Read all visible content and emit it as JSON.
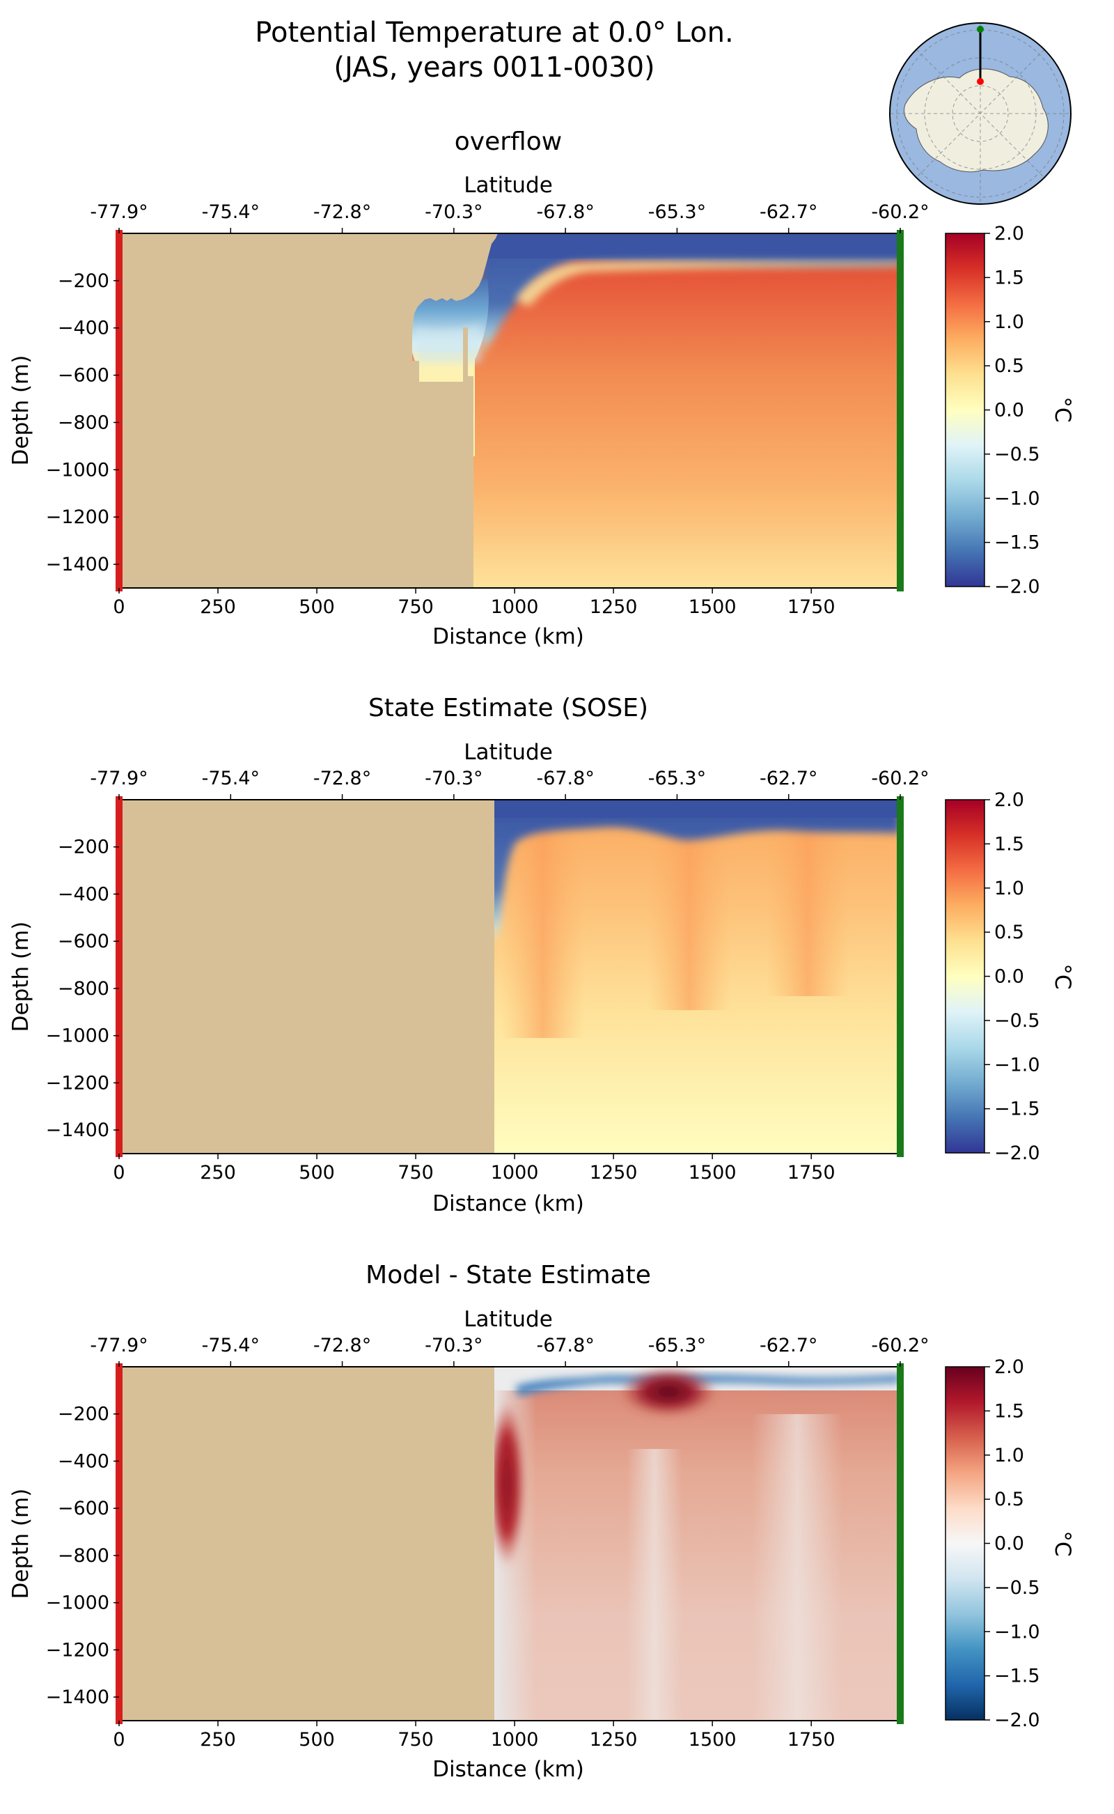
{
  "figure": {
    "title_line1": "Potential Temperature at 0.0° Lon.",
    "title_line2": "(JAS, years 0011-0030)"
  },
  "chart_data": [
    {
      "type": "heatmap",
      "title": "overflow",
      "xlabel": "Distance (km)",
      "ylabel": "Depth (m)",
      "secondary_xlabel": "Latitude",
      "xlim": [
        0,
        1975
      ],
      "ylim": [
        -1500,
        0
      ],
      "xticks": [
        "0",
        "250",
        "500",
        "750",
        "1000",
        "1250",
        "1500",
        "1750"
      ],
      "yticks": [
        "−200",
        "−400",
        "−600",
        "−800",
        "−1000",
        "−1200",
        "−1400"
      ],
      "lat_ticks": [
        "-77.9°",
        "-75.4°",
        "-72.8°",
        "-70.3°",
        "-67.8°",
        "-65.3°",
        "-62.7°",
        "-60.2°"
      ],
      "colorbar": {
        "label": "°C",
        "range": [
          -2.0,
          2.0
        ],
        "ticks": [
          "2.0",
          "1.5",
          "1.0",
          "0.5",
          "0.0",
          "−0.5",
          "−1.0",
          "−1.5",
          "−2.0"
        ],
        "colormap": "RdYlBu_r"
      },
      "land_color": "#d7c098"
    },
    {
      "type": "heatmap",
      "title": "State Estimate (SOSE)",
      "xlabel": "Distance (km)",
      "ylabel": "Depth (m)",
      "secondary_xlabel": "Latitude",
      "xlim": [
        0,
        1975
      ],
      "ylim": [
        -1500,
        0
      ],
      "xticks": [
        "0",
        "250",
        "500",
        "750",
        "1000",
        "1250",
        "1500",
        "1750"
      ],
      "yticks": [
        "−200",
        "−400",
        "−600",
        "−800",
        "−1000",
        "−1200",
        "−1400"
      ],
      "lat_ticks": [
        "-77.9°",
        "-75.4°",
        "-72.8°",
        "-70.3°",
        "-67.8°",
        "-65.3°",
        "-62.7°",
        "-60.2°"
      ],
      "colorbar": {
        "label": "°C",
        "range": [
          -2.0,
          2.0
        ],
        "ticks": [
          "2.0",
          "1.5",
          "1.0",
          "0.5",
          "0.0",
          "−0.5",
          "−1.0",
          "−1.5",
          "−2.0"
        ],
        "colormap": "RdYlBu_r"
      },
      "land_color": "#d7c098"
    },
    {
      "type": "heatmap",
      "title": "Model - State Estimate",
      "xlabel": "Distance (km)",
      "ylabel": "Depth (m)",
      "secondary_xlabel": "Latitude",
      "xlim": [
        0,
        1975
      ],
      "ylim": [
        -1500,
        0
      ],
      "xticks": [
        "0",
        "250",
        "500",
        "750",
        "1000",
        "1250",
        "1500",
        "1750"
      ],
      "yticks": [
        "−200",
        "−400",
        "−600",
        "−800",
        "−1000",
        "−1200",
        "−1400"
      ],
      "lat_ticks": [
        "-77.9°",
        "-75.4°",
        "-72.8°",
        "-70.3°",
        "-67.8°",
        "-65.3°",
        "-62.7°",
        "-60.2°"
      ],
      "colorbar": {
        "label": "°C",
        "range": [
          -2.0,
          2.0
        ],
        "ticks": [
          "2.0",
          "1.5",
          "1.0",
          "0.5",
          "0.0",
          "−0.5",
          "−1.0",
          "−1.5",
          "−2.0"
        ],
        "colormap": "RdBu_r"
      },
      "land_color": "#d7c098"
    }
  ],
  "inset_map": {
    "region": "Antarctica polar stereographic",
    "ocean_color": "#9ab8e0",
    "land_color": "#efeedf",
    "transect_start_color": "#ff0000",
    "transect_end_color": "#008000"
  }
}
